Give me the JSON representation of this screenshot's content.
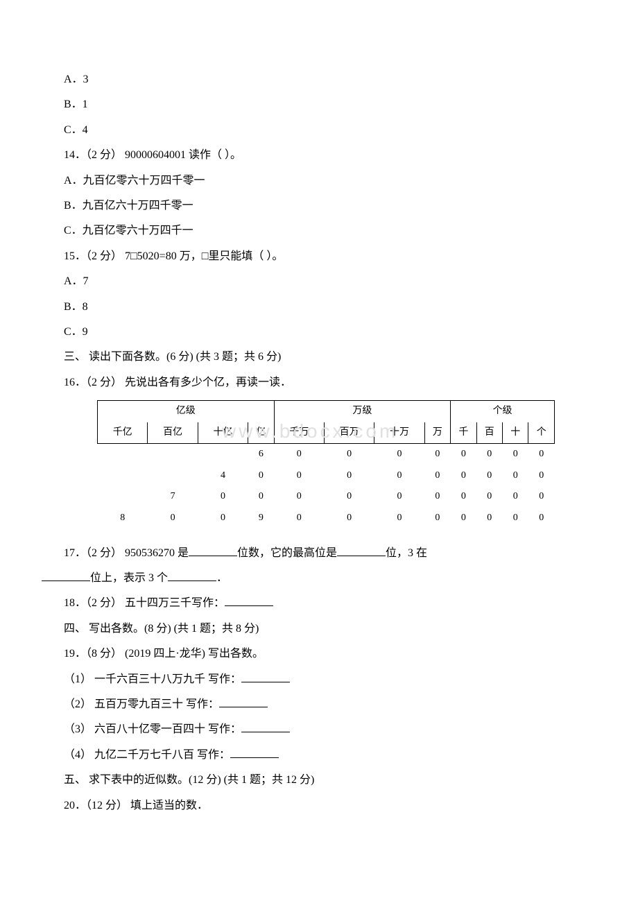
{
  "q13opts": {
    "a": "A．3",
    "b": "B．1",
    "c": "C．4"
  },
  "q14": {
    "stem": "14．（2 分） 90000604001 读作（ ）。",
    "a": "A．九百亿零六十万四千零一",
    "b": "B．九百亿六十万四千零一",
    "c": "C．九百亿零六十万四千一"
  },
  "q15": {
    "stem": "15．（2 分） 7□5020=80 万，□里只能填（ ）。",
    "a": "A．7",
    "b": "B．8",
    "c": "C．9"
  },
  "sec3": "三、 读出下面各数。(6 分) (共 3 题；共 6 分)",
  "q16": "16．（2 分） 先说出各有多少个亿，再读一读．",
  "table": {
    "groups": [
      "亿级",
      "万级",
      "个级"
    ],
    "headers": [
      "千亿",
      "百亿",
      "十亿",
      "亿",
      "千万",
      "百万",
      "十万",
      "万",
      "千",
      "百",
      "十",
      "个"
    ],
    "rows": [
      [
        "",
        "",
        "",
        "6",
        "0",
        "0",
        "0",
        "0",
        "0",
        "0",
        "0",
        "0"
      ],
      [
        "",
        "",
        "4",
        "0",
        "0",
        "0",
        "0",
        "0",
        "0",
        "0",
        "0",
        "0"
      ],
      [
        "",
        "7",
        "0",
        "0",
        "0",
        "0",
        "0",
        "0",
        "0",
        "0",
        "0",
        "0"
      ],
      [
        "8",
        "0",
        "0",
        "9",
        "0",
        "0",
        "0",
        "0",
        "0",
        "0",
        "0",
        "0"
      ]
    ]
  },
  "q17": {
    "p1": "17．（2 分） 950536270 是",
    "p2": "位数，它的最高位是",
    "p3": "位，3 在",
    "p4": "位上，表示 3 个",
    "p5": "．"
  },
  "q18": {
    "p1": "18．（2 分） 五十四万三千写作："
  },
  "sec4": "四、 写出各数。(8 分) (共 1 题；共 8 分)",
  "q19": {
    "stem": "19．（8 分） (2019 四上·龙华) 写出各数。",
    "s1": "（1） 一千六百三十八万九千   写作：",
    "s2": "（2） 五百万零九百三十   写作：",
    "s3": "（3） 六百八十亿零一百四十   写作：",
    "s4": "（4） 九亿二千万七千八百   写作："
  },
  "sec5": "五、 求下表中的近似数。(12 分) (共 1 题；共 12 分)",
  "q20": "20．（12 分） 填上适当的数．",
  "watermark": "www.bdocx.com"
}
